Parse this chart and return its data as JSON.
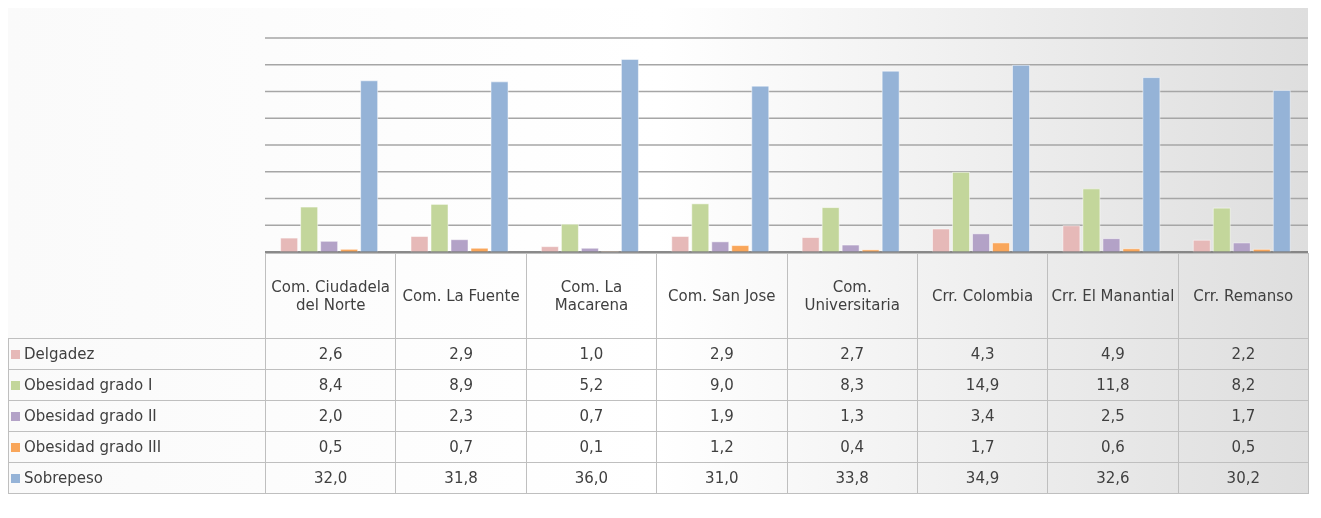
{
  "chart_data": {
    "type": "bar",
    "categories": [
      "Com. Ciudadela del Norte",
      "Com. La Fuente",
      "Com. La Macarena",
      "Com. San Jose",
      "Com. Universitaria",
      "Crr. Colombia",
      "Crr. El Manantial",
      "Crr. Remanso"
    ],
    "series": [
      {
        "name": "Delgadez",
        "color": "#e6b9b8",
        "values": [
          2.6,
          2.9,
          1.0,
          2.9,
          2.7,
          4.3,
          4.9,
          2.2
        ],
        "value_labels": [
          "2,6",
          "2,9",
          "1,0",
          "2,9",
          "2,7",
          "4,3",
          "4,9",
          "2,2"
        ]
      },
      {
        "name": "Obesidad grado I",
        "color": "#c3d69b",
        "values": [
          8.4,
          8.9,
          5.2,
          9.0,
          8.3,
          14.9,
          11.8,
          8.2
        ],
        "value_labels": [
          "8,4",
          "8,9",
          "5,2",
          "9,0",
          "8,3",
          "14,9",
          "11,8",
          "8,2"
        ]
      },
      {
        "name": "Obesidad grado II",
        "color": "#b3a2c7",
        "values": [
          2.0,
          2.3,
          0.7,
          1.9,
          1.3,
          3.4,
          2.5,
          1.7
        ],
        "value_labels": [
          "2,0",
          "2,3",
          "0,7",
          "1,9",
          "1,3",
          "3,4",
          "2,5",
          "1,7"
        ]
      },
      {
        "name": "Obesidad grado III",
        "color": "#f9a65a",
        "values": [
          0.5,
          0.7,
          0.1,
          1.2,
          0.4,
          1.7,
          0.6,
          0.5
        ],
        "value_labels": [
          "0,5",
          "0,7",
          "0,1",
          "1,2",
          "0,4",
          "1,7",
          "0,6",
          "0,5"
        ]
      },
      {
        "name": "Sobrepeso",
        "color": "#95b3d7",
        "values": [
          32.0,
          31.8,
          36.0,
          31.0,
          33.8,
          34.9,
          32.6,
          30.2
        ],
        "value_labels": [
          "32,0",
          "31,8",
          "36,0",
          "31,0",
          "33,8",
          "34,9",
          "32,6",
          "30,2"
        ]
      }
    ],
    "grid": "y",
    "legend": "bottom left",
    "tick_labels": "x"
  }
}
